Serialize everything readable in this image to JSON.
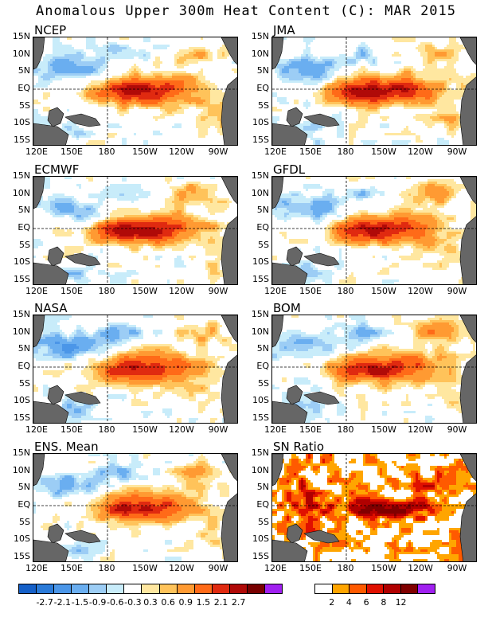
{
  "title": "Anomalous Upper 300m Heat Content (C): MAR 2015",
  "lat_labels": [
    "15N",
    "10N",
    "5N",
    "EQ",
    "5S",
    "10S",
    "15S"
  ],
  "lon_labels": [
    "120E",
    "150E",
    "180",
    "150W",
    "120W",
    "90W"
  ],
  "panels": [
    {
      "name": "NCEP",
      "kind": "anom",
      "strength": 1.0,
      "north": 0.6,
      "south": 0.6,
      "west": 0.7
    },
    {
      "name": "JMA",
      "kind": "anom",
      "strength": 1.05,
      "north": 0.5,
      "south": 0.7,
      "west": 0.6
    },
    {
      "name": "ECMWF",
      "kind": "anom",
      "strength": 1.05,
      "north": 0.7,
      "south": 0.6,
      "west": 0.6
    },
    {
      "name": "GFDL",
      "kind": "anom",
      "strength": 1.0,
      "north": 0.7,
      "south": 0.5,
      "west": 0.7
    },
    {
      "name": "NASA",
      "kind": "anom",
      "strength": 0.95,
      "north": 0.6,
      "south": 0.6,
      "west": 0.8
    },
    {
      "name": "BOM",
      "kind": "anom",
      "strength": 1.0,
      "north": 0.8,
      "south": 0.7,
      "west": 0.6
    },
    {
      "name": "ENS. Mean",
      "kind": "anom",
      "strength": 0.95,
      "north": 0.6,
      "south": 0.6,
      "west": 0.7
    },
    {
      "name": "SN Ratio",
      "kind": "snr",
      "strength": 1.0,
      "north": 0.5,
      "south": 0.5,
      "west": 0.4
    }
  ],
  "colorbar_anom": {
    "colors": [
      "#1560c8",
      "#2a7ad8",
      "#4b96e8",
      "#6aaef0",
      "#9ccdf5",
      "#c8ecfa",
      "#ffffff",
      "#ffe7a0",
      "#ffc35a",
      "#ff9a32",
      "#ff6a18",
      "#e02a10",
      "#b00a08",
      "#780000",
      "#a020f0"
    ],
    "labels": [
      "-2.7",
      "-2.1",
      "-1.5",
      "-0.9",
      "-0.6",
      "-0.3",
      "0.3",
      "0.6",
      "0.9",
      "1.5",
      "2.1",
      "2.7"
    ]
  },
  "colorbar_snr": {
    "colors": [
      "#ffffff",
      "#ffa500",
      "#ff5a00",
      "#e01000",
      "#b00000",
      "#800000",
      "#a020f0"
    ],
    "labels": [
      "2",
      "4",
      "6",
      "8",
      "12"
    ]
  }
}
